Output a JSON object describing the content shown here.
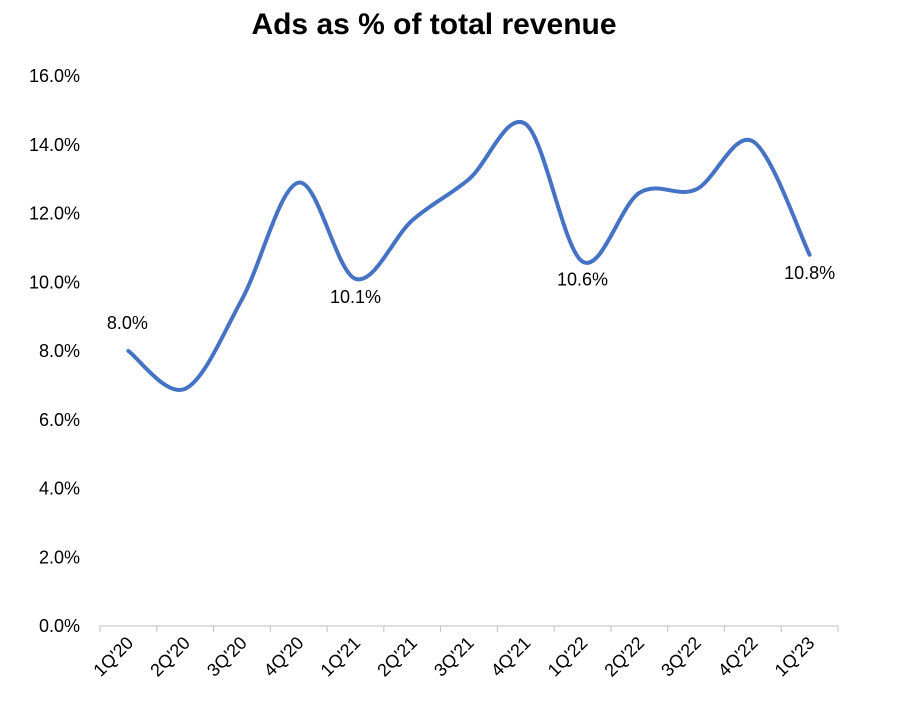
{
  "chart_data": {
    "type": "line",
    "title": "Ads as % of total revenue",
    "xlabel": "",
    "ylabel": "",
    "categories": [
      "1Q'20",
      "2Q'20",
      "3Q'20",
      "4Q'20",
      "1Q'21",
      "2Q'21",
      "3Q'21",
      "4Q'21",
      "1Q'22",
      "2Q'22",
      "3Q'22",
      "4Q'22",
      "1Q'23"
    ],
    "series": [
      {
        "values": [
          8.0,
          6.9,
          9.5,
          12.9,
          10.1,
          11.8,
          13.0,
          14.6,
          10.6,
          12.6,
          12.7,
          14.1,
          10.8
        ]
      }
    ],
    "y_ticks": [
      "0.0%",
      "2.0%",
      "4.0%",
      "6.0%",
      "8.0%",
      "10.0%",
      "12.0%",
      "14.0%",
      "16.0%"
    ],
    "ylim": [
      0,
      16
    ],
    "data_labels": [
      {
        "index": 0,
        "text": "8.0%"
      },
      {
        "index": 4,
        "text": "10.1%"
      },
      {
        "index": 8,
        "text": "10.6%"
      },
      {
        "index": 12,
        "text": "10.8%"
      }
    ],
    "grid": false,
    "legend": "none",
    "line_color": "#4472C4"
  }
}
